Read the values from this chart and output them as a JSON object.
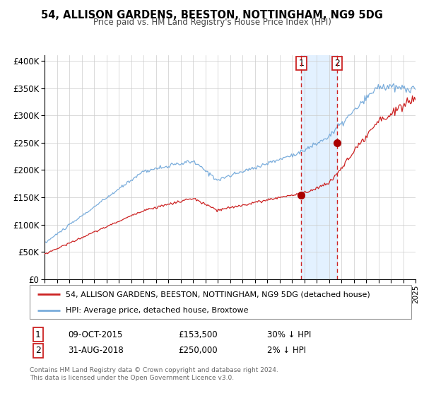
{
  "title": "54, ALLISON GARDENS, BEESTON, NOTTINGHAM, NG9 5DG",
  "subtitle": "Price paid vs. HM Land Registry's House Price Index (HPI)",
  "legend_line1": "54, ALLISON GARDENS, BEESTON, NOTTINGHAM, NG9 5DG (detached house)",
  "legend_line2": "HPI: Average price, detached house, Broxtowe",
  "annotation1_date": "09-OCT-2015",
  "annotation1_price": "£153,500",
  "annotation1_pct": "30% ↓ HPI",
  "annotation2_date": "31-AUG-2018",
  "annotation2_price": "£250,000",
  "annotation2_pct": "2% ↓ HPI",
  "footnote1": "Contains HM Land Registry data © Crown copyright and database right 2024.",
  "footnote2": "This data is licensed under the Open Government Licence v3.0.",
  "hpi_color": "#7aaddc",
  "price_color": "#cc2222",
  "dot_color": "#aa0000",
  "background_color": "#ffffff",
  "grid_color": "#cccccc",
  "shade_color": "#ddeeff",
  "ylim": [
    0,
    410000
  ],
  "yticks": [
    0,
    50000,
    100000,
    150000,
    200000,
    250000,
    300000,
    350000,
    400000
  ],
  "year_start": 1995,
  "year_end": 2025,
  "purchase1_year": 2015.77,
  "purchase2_year": 2018.67,
  "p1_price": 153500,
  "p2_price": 250000
}
